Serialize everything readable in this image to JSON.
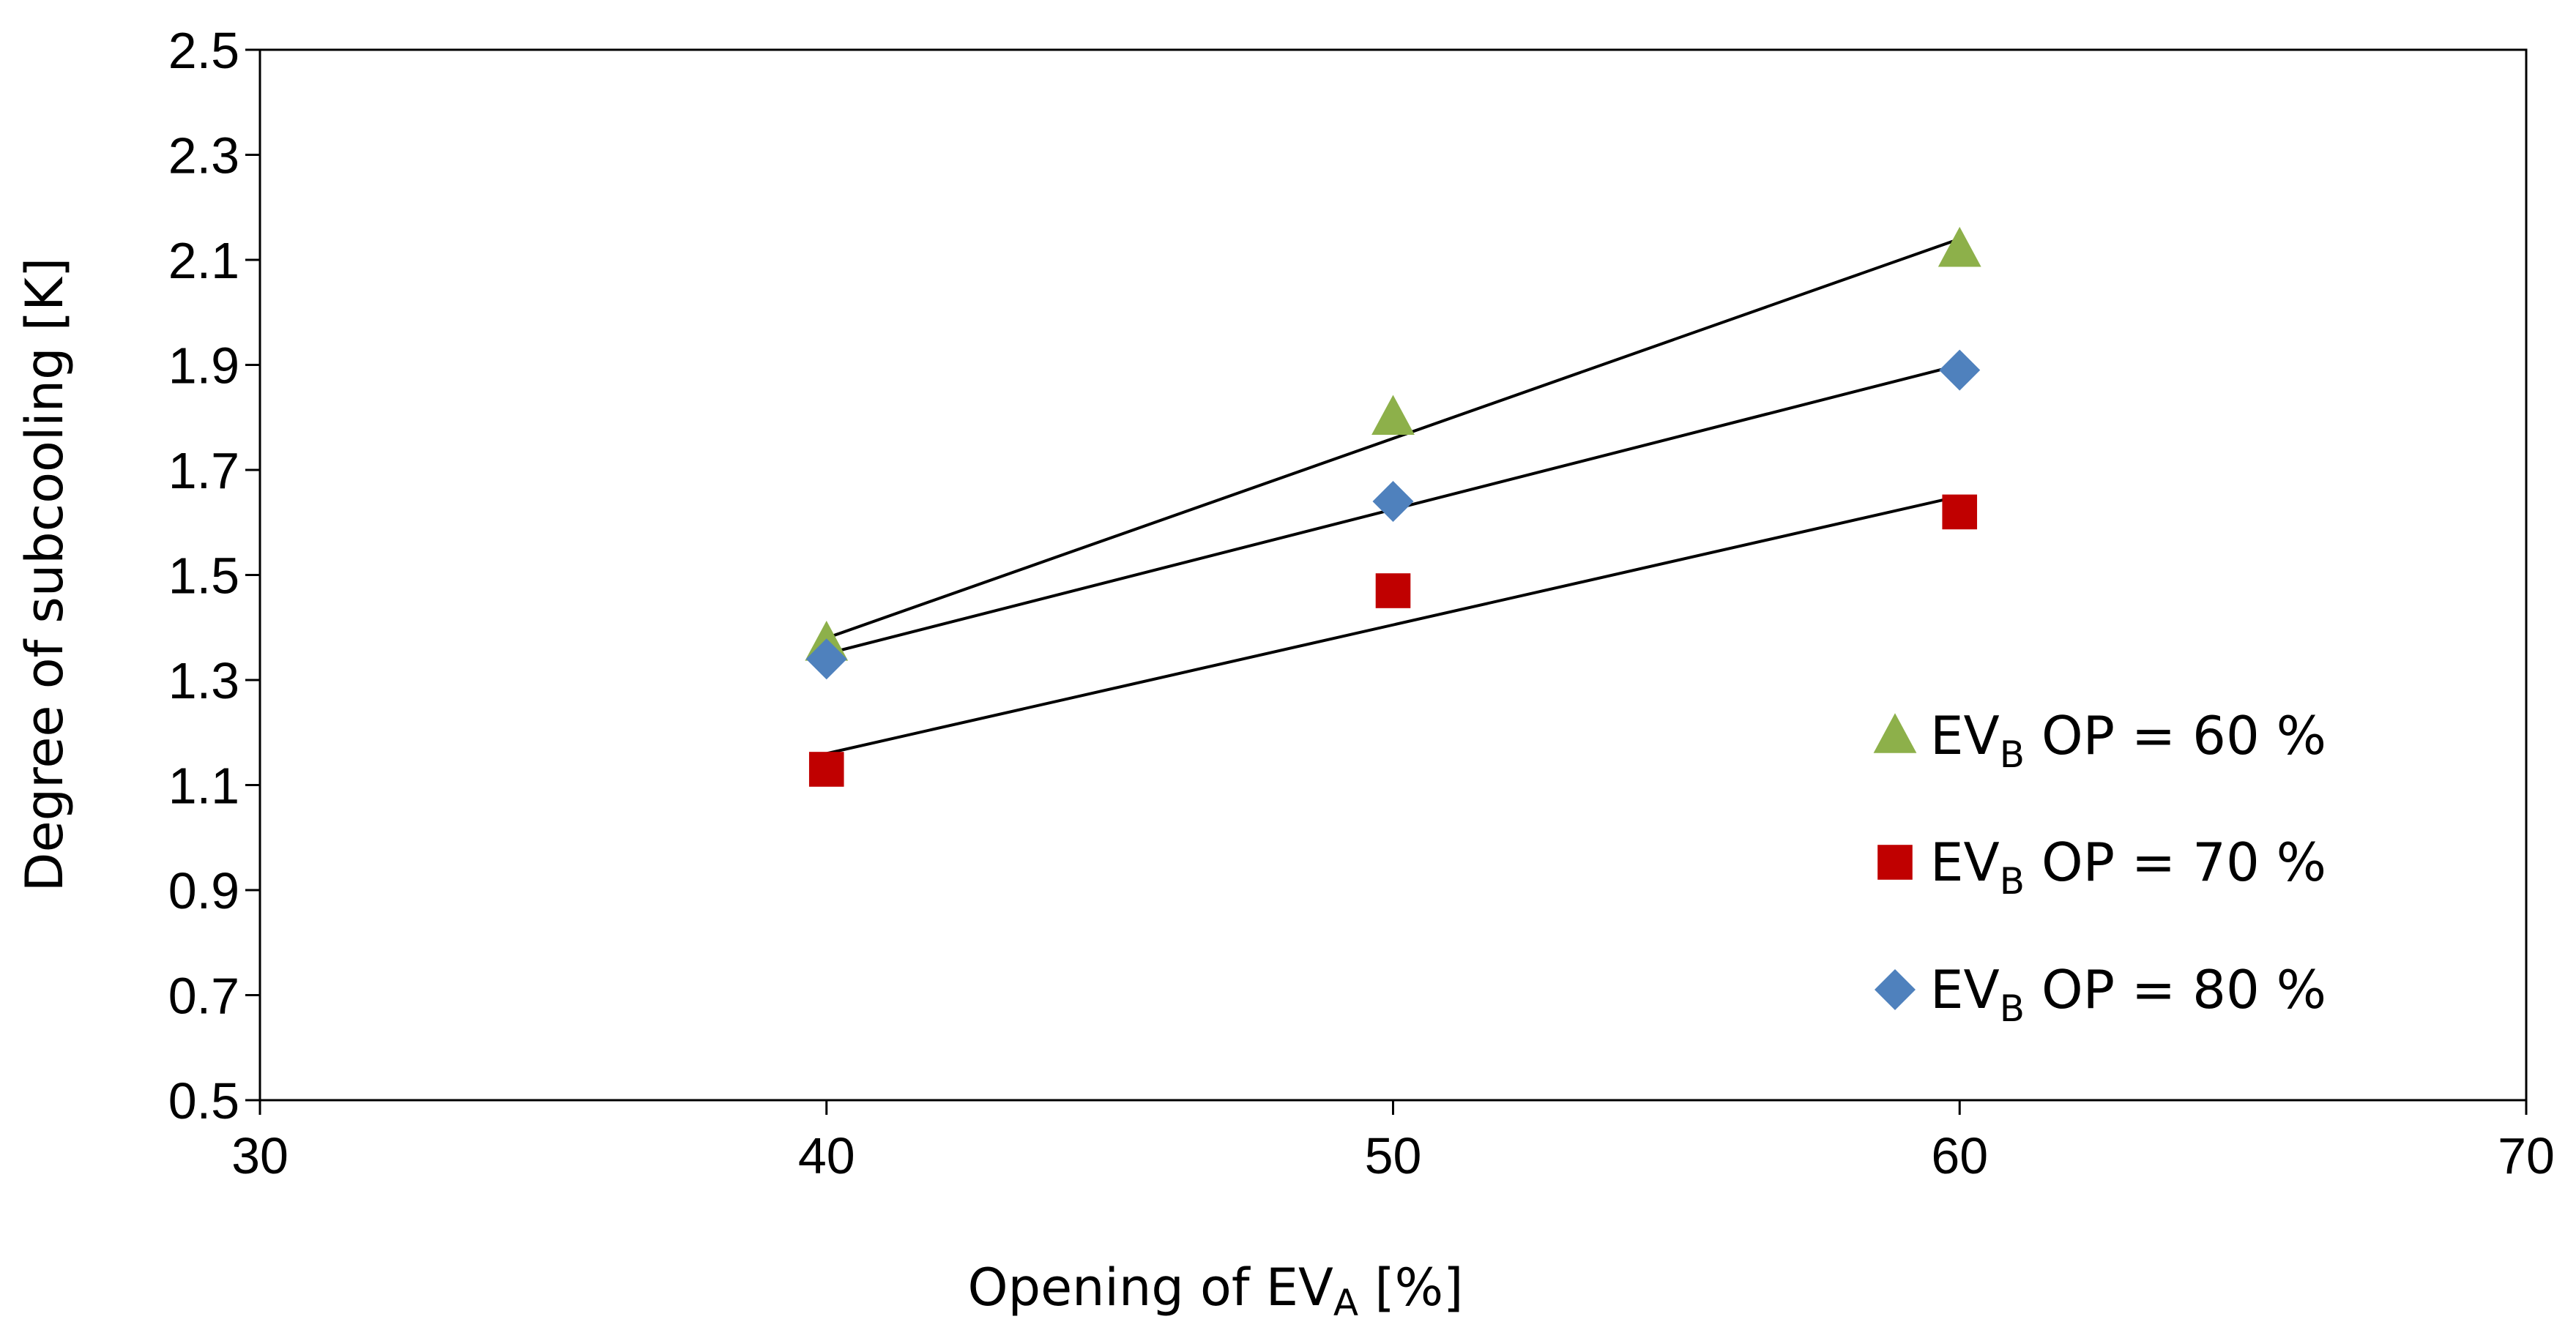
{
  "chart_data": {
    "type": "scatter",
    "title": "",
    "xlabel": {
      "main": "Opening  of EV",
      "sub": "A",
      "suffix": " [%]"
    },
    "ylabel": "Degree of subcooling [K]",
    "xlim": [
      30,
      70
    ],
    "ylim": [
      0.5,
      2.5
    ],
    "xticks": [
      "30",
      "40",
      "50",
      "60",
      "70"
    ],
    "yticks": [
      "0.5",
      "0.7",
      "0.9",
      "1.1",
      "1.3",
      "1.5",
      "1.7",
      "1.9",
      "2.1",
      "2.3",
      "2.5"
    ],
    "grid": false,
    "legend_position": "right",
    "series": [
      {
        "name": "EV_B OP = 60 %",
        "label_main": "EV",
        "label_sub": "B",
        "label_suffix": "  OP = 60 %",
        "marker": "triangle",
        "color": "#8DB04A",
        "x": [
          40,
          50,
          60
        ],
        "y": [
          1.37,
          1.8,
          2.12
        ],
        "trend": {
          "x": [
            40,
            60
          ],
          "y": [
            1.38,
            2.14
          ]
        }
      },
      {
        "name": "EV_B OP = 70 %",
        "label_main": "EV",
        "label_sub": "B",
        "label_suffix": "  OP = 70 %",
        "marker": "square",
        "color": "#C00000",
        "x": [
          40,
          50,
          60
        ],
        "y": [
          1.13,
          1.47,
          1.62
        ],
        "trend": {
          "x": [
            40,
            60
          ],
          "y": [
            1.16,
            1.65
          ]
        }
      },
      {
        "name": "EV_B OP = 80 %",
        "label_main": "EV",
        "label_sub": "B",
        "label_suffix": "  OP = 80 %",
        "marker": "diamond",
        "color": "#4F81BD",
        "x": [
          40,
          50,
          60
        ],
        "y": [
          1.34,
          1.64,
          1.89
        ],
        "trend": {
          "x": [
            40,
            60
          ],
          "y": [
            1.35,
            1.9
          ]
        }
      }
    ]
  }
}
